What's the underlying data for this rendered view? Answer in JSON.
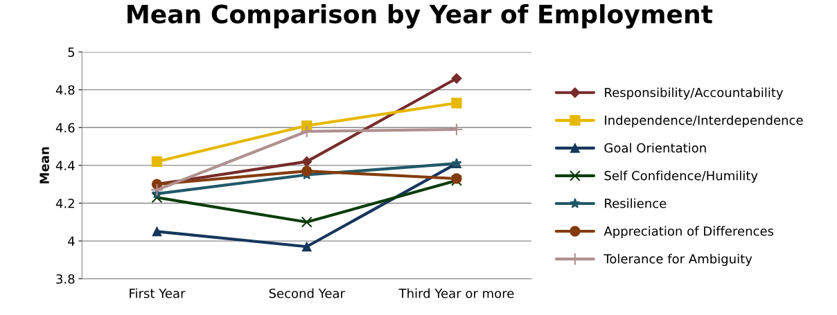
{
  "chart_data": {
    "type": "line",
    "title": "Mean Comparison by Year of Employment",
    "ylabel": "Mean",
    "categories": [
      "First Year",
      "Second Year",
      "Third Year or more"
    ],
    "series": [
      {
        "name": "Responsibility/Accountability",
        "color": "#772c2a",
        "marker": "diamond",
        "values": [
          4.3,
          4.42,
          4.86
        ]
      },
      {
        "name": "Independence/Interdependence",
        "color": "#e6b800",
        "marker": "square",
        "values": [
          4.42,
          4.61,
          4.73
        ]
      },
      {
        "name": "Goal Orientation",
        "color": "#17365d",
        "marker": "triangle",
        "values": [
          4.05,
          3.97,
          4.41
        ]
      },
      {
        "name": "Self Confidence/Humility",
        "color": "#0b3d0b",
        "marker": "cross",
        "values": [
          4.23,
          4.1,
          4.32
        ]
      },
      {
        "name": "Resilience",
        "color": "#215868",
        "marker": "star",
        "values": [
          4.25,
          4.35,
          4.41
        ]
      },
      {
        "name": "Appreciation of Differences",
        "color": "#843c0c",
        "marker": "circle",
        "values": [
          4.3,
          4.37,
          4.33
        ]
      },
      {
        "name": "Tolerance for Ambiguity",
        "color": "#b09090",
        "marker": "plus",
        "values": [
          4.27,
          4.58,
          4.59
        ]
      }
    ],
    "ylim": [
      3.8,
      5
    ],
    "yticks": [
      3.8,
      4,
      4.2,
      4.4,
      4.6,
      4.8,
      5
    ],
    "grid": "y",
    "legend": "right"
  }
}
